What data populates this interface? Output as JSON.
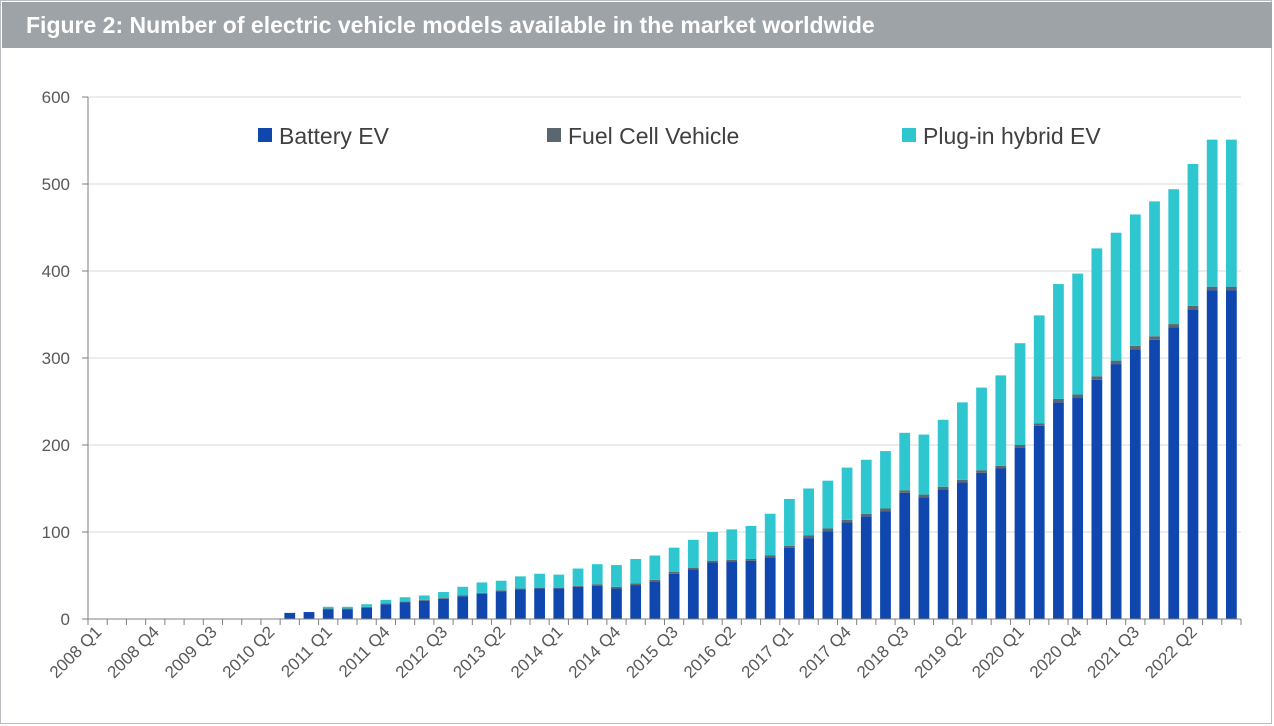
{
  "title": "Figure 2: Number of electric vehicle models available in the market worldwide",
  "chart_data": {
    "type": "bar",
    "stacked": true,
    "title": "Figure 2: Number of electric vehicle models available in the market worldwide",
    "xlabel": "",
    "ylabel": "",
    "ylim": [
      0,
      600
    ],
    "yticks": [
      0,
      100,
      200,
      300,
      400,
      500,
      600
    ],
    "grid": true,
    "legend_position": "top",
    "categories": [
      "2008 Q1",
      "2008 Q2",
      "2008 Q3",
      "2008 Q4",
      "2009 Q1",
      "2009 Q2",
      "2009 Q3",
      "2009 Q4",
      "2010 Q1",
      "2010 Q2",
      "2010 Q3",
      "2010 Q4",
      "2011 Q1",
      "2011 Q2",
      "2011 Q3",
      "2011 Q4",
      "2012 Q1",
      "2012 Q2",
      "2012 Q3",
      "2012 Q4",
      "2013 Q1",
      "2013 Q2",
      "2013 Q3",
      "2013 Q4",
      "2014 Q1",
      "2014 Q2",
      "2014 Q3",
      "2014 Q4",
      "2015 Q1",
      "2015 Q2",
      "2015 Q3",
      "2015 Q4",
      "2016 Q1",
      "2016 Q2",
      "2016 Q3",
      "2016 Q4",
      "2017 Q1",
      "2017 Q2",
      "2017 Q3",
      "2017 Q4",
      "2018 Q1",
      "2018 Q2",
      "2018 Q3",
      "2018 Q4",
      "2019 Q1",
      "2019 Q2",
      "2019 Q3",
      "2019 Q4",
      "2020 Q1",
      "2020 Q2",
      "2020 Q3",
      "2020 Q4",
      "2021 Q1",
      "2021 Q2",
      "2021 Q3",
      "2021 Q4",
      "2022 Q1",
      "2022 Q2",
      "2022 Q3",
      "2022 Q4"
    ],
    "visible_tick_labels": [
      "2008 Q1",
      "2008 Q4",
      "2009 Q3",
      "2010 Q2",
      "2011 Q1",
      "2011 Q4",
      "2012 Q3",
      "2013 Q2",
      "2014 Q1",
      "2014 Q4",
      "2015 Q3",
      "2016 Q2",
      "2017 Q1",
      "2017 Q4",
      "2018 Q3",
      "2019 Q2",
      "2020 Q1",
      "2020 Q4",
      "2021 Q3",
      "2022 Q2"
    ],
    "series": [
      {
        "name": "Battery EV",
        "color": "#0f47af",
        "values": [
          0,
          0,
          0,
          0,
          0,
          0,
          0,
          0,
          0,
          0,
          7,
          8,
          11,
          11,
          13,
          17,
          19,
          21,
          23,
          26,
          29,
          32,
          34,
          35,
          35,
          37,
          38,
          35,
          39,
          43,
          52,
          57,
          65,
          66,
          67,
          71,
          82,
          93,
          101,
          111,
          118,
          124,
          145,
          140,
          149,
          157,
          168,
          173,
          197,
          222,
          249,
          254,
          275,
          293,
          310,
          321,
          335,
          356,
          378,
          378
        ]
      },
      {
        "name": "Fuel Cell Vehicle",
        "color": "#5b6670",
        "values": [
          0,
          0,
          0,
          0,
          0,
          0,
          0,
          0,
          0,
          0,
          0,
          0,
          1,
          1,
          1,
          1,
          1,
          1,
          1,
          1,
          1,
          1,
          1,
          1,
          1,
          1,
          2,
          2,
          2,
          2,
          2,
          2,
          2,
          2,
          2,
          2,
          2,
          3,
          3,
          3,
          3,
          3,
          3,
          3,
          3,
          3,
          3,
          3,
          3,
          3,
          4,
          4,
          4,
          4,
          4,
          4,
          4,
          4,
          4,
          4
        ]
      },
      {
        "name": "Plug-in hybrid EV",
        "color": "#2ec6cf",
        "values": [
          0,
          0,
          0,
          0,
          0,
          0,
          0,
          0,
          0,
          0,
          0,
          0,
          2,
          2,
          3,
          4,
          5,
          5,
          7,
          10,
          12,
          11,
          14,
          16,
          15,
          20,
          23,
          25,
          28,
          28,
          28,
          32,
          33,
          35,
          38,
          48,
          54,
          54,
          55,
          60,
          62,
          66,
          66,
          69,
          77,
          89,
          95,
          104,
          117,
          124,
          132,
          139,
          147,
          147,
          151,
          155,
          155,
          163,
          169,
          169
        ]
      }
    ]
  }
}
